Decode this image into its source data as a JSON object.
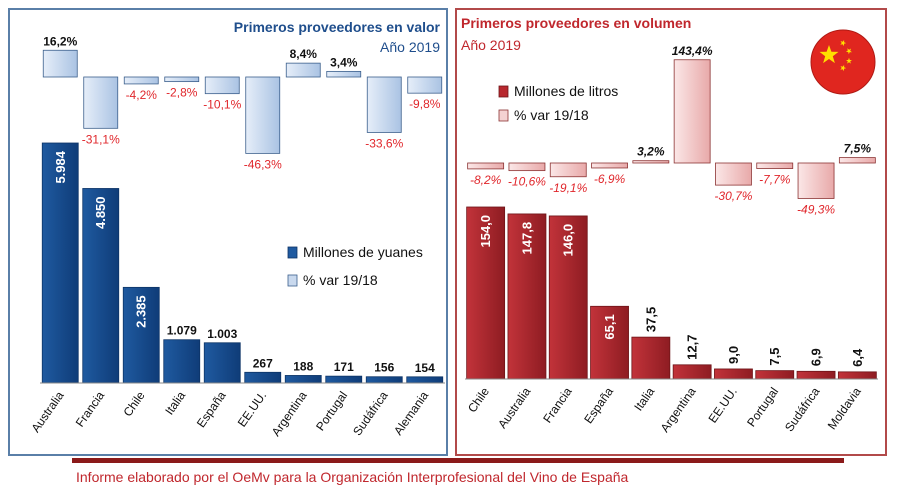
{
  "footer": {
    "text": "Informe elaborado por el OeMv para la Organización Interprofesional del Vino de España"
  },
  "chart_data": [
    {
      "type": "bar",
      "title": "Primeros proveedores en valor",
      "subtitle": "Año 2019",
      "categories": [
        "Australia",
        "Francia",
        "Chile",
        "Italia",
        "España",
        "EE.UU.",
        "Argentina",
        "Portugal",
        "Sudáfrica",
        "Alemania"
      ],
      "series": [
        {
          "name": "Millones de yuanes",
          "values": [
            5984,
            4850,
            2385,
            1079,
            1003,
            267,
            188,
            171,
            156,
            154
          ],
          "labels": [
            "5.984",
            "4.850",
            "2.385",
            "1.079",
            "1.003",
            "267",
            "188",
            "171",
            "156",
            "154"
          ],
          "color": "#1f5aa0"
        },
        {
          "name": "% var 19/18",
          "values": [
            16.2,
            -31.1,
            -4.2,
            -2.8,
            -10.1,
            -46.3,
            8.4,
            3.4,
            -33.6,
            -9.8
          ],
          "labels": [
            "16,2%",
            "-31,1%",
            "-4,2%",
            "-2,8%",
            "-10,1%",
            "-46,3%",
            "8,4%",
            "3,4%",
            "-33,6%",
            "-9,8%"
          ],
          "color": "#c9d9ee"
        }
      ],
      "colors": {
        "title": "#1f4e8c",
        "negative_label": "#e0262b",
        "positive_label": "#111111"
      }
    },
    {
      "type": "bar",
      "title": "Primeros proveedores en volumen",
      "subtitle": "Año 2019",
      "categories": [
        "Chile",
        "Australia",
        "Francia",
        "España",
        "Italia",
        "Argentina",
        "EE.UU.",
        "Portugal",
        "Sudáfrica",
        "Moldavia"
      ],
      "series": [
        {
          "name": "Millones de litros",
          "values": [
            154.0,
            147.8,
            146.0,
            65.1,
            37.5,
            12.7,
            9.0,
            7.5,
            6.9,
            6.4
          ],
          "labels": [
            "154,0",
            "147,8",
            "146,0",
            "65,1",
            "37,5",
            "12,7",
            "9,0",
            "7,5",
            "6,9",
            "6,4"
          ],
          "color": "#b8282e"
        },
        {
          "name": "% var 19/18",
          "values": [
            -8.2,
            -10.6,
            -19.1,
            -6.9,
            3.2,
            143.4,
            -30.7,
            -7.7,
            -49.3,
            7.5
          ],
          "labels": [
            "-8,2%",
            "-10,6%",
            "-19,1%",
            "-6,9%",
            "3,2%",
            "143,4%",
            "-30,7%",
            "-7,7%",
            "-49,3%",
            "7,5%"
          ],
          "color": "#f4d2d2"
        }
      ],
      "colors": {
        "title": "#c0272d",
        "negative_label": "#e0262b",
        "positive_label": "#111111"
      }
    }
  ]
}
